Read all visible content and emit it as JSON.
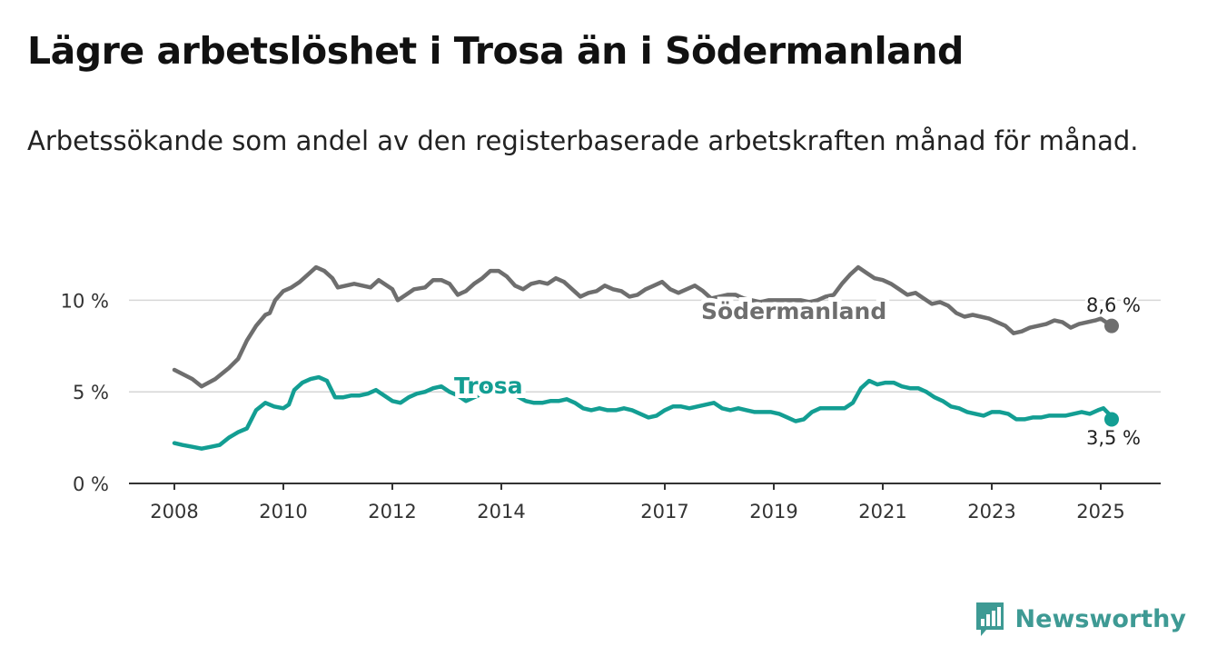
{
  "title": "Lägre arbetslöshet i Trosa än i Södermanland",
  "subtitle": "Arbetssökande som andel av den registerbaserade arbetskraften månad för månad.",
  "brand": "Newsworthy",
  "colors": {
    "sodermanland": "#6e6e6e",
    "trosa": "#139e93",
    "grid": "#d6d6d6",
    "axis": "#333333",
    "brand": "#3e9a94"
  },
  "chart_data": {
    "type": "line",
    "title": "Lägre arbetslöshet i Trosa än i Södermanland",
    "xlabel": "",
    "ylabel": "",
    "xlim": [
      2008,
      2025.2
    ],
    "ylim": [
      0,
      12
    ],
    "y_ticks": [
      0,
      5,
      10
    ],
    "y_tick_labels": [
      "0 %",
      "5 %",
      "10 %"
    ],
    "x_ticks": [
      2008,
      2010,
      2012,
      2014,
      2017,
      2019,
      2021,
      2023,
      2025
    ],
    "x_tick_labels": [
      "2008",
      "2010",
      "2012",
      "2014",
      "2017",
      "2019",
      "2021",
      "2023",
      "2025"
    ],
    "grid": true,
    "legend": "inline labels",
    "series": [
      {
        "name": "Södermanland",
        "end_label": "8,6 %",
        "points": [
          [
            2008,
            6.2
          ],
          [
            2008.2,
            5.9
          ],
          [
            2008.33,
            5.7
          ],
          [
            2008.5,
            5.3
          ],
          [
            2008.75,
            5.7
          ],
          [
            2009,
            6.3
          ],
          [
            2009.17,
            6.8
          ],
          [
            2009.33,
            7.8
          ],
          [
            2009.5,
            8.6
          ],
          [
            2009.67,
            9.2
          ],
          [
            2009.75,
            9.3
          ],
          [
            2009.85,
            10.0
          ],
          [
            2010,
            10.5
          ],
          [
            2010.15,
            10.7
          ],
          [
            2010.3,
            11.0
          ],
          [
            2010.45,
            11.4
          ],
          [
            2010.6,
            11.8
          ],
          [
            2010.75,
            11.6
          ],
          [
            2010.9,
            11.2
          ],
          [
            2011,
            10.7
          ],
          [
            2011.15,
            10.8
          ],
          [
            2011.3,
            10.9
          ],
          [
            2011.45,
            10.8
          ],
          [
            2011.6,
            10.7
          ],
          [
            2011.75,
            11.1
          ],
          [
            2011.9,
            10.8
          ],
          [
            2012,
            10.6
          ],
          [
            2012.1,
            10.0
          ],
          [
            2012.25,
            10.3
          ],
          [
            2012.4,
            10.6
          ],
          [
            2012.6,
            10.7
          ],
          [
            2012.75,
            11.1
          ],
          [
            2012.9,
            11.1
          ],
          [
            2013.05,
            10.9
          ],
          [
            2013.2,
            10.3
          ],
          [
            2013.35,
            10.5
          ],
          [
            2013.5,
            10.9
          ],
          [
            2013.65,
            11.2
          ],
          [
            2013.8,
            11.6
          ],
          [
            2013.95,
            11.6
          ],
          [
            2014.1,
            11.3
          ],
          [
            2014.25,
            10.8
          ],
          [
            2014.4,
            10.6
          ],
          [
            2014.55,
            10.9
          ],
          [
            2014.7,
            11.0
          ],
          [
            2014.85,
            10.9
          ],
          [
            2015,
            11.2
          ],
          [
            2015.15,
            11.0
          ],
          [
            2015.3,
            10.6
          ],
          [
            2015.45,
            10.2
          ],
          [
            2015.6,
            10.4
          ],
          [
            2015.75,
            10.5
          ],
          [
            2015.9,
            10.8
          ],
          [
            2016.05,
            10.6
          ],
          [
            2016.2,
            10.5
          ],
          [
            2016.35,
            10.2
          ],
          [
            2016.5,
            10.3
          ],
          [
            2016.65,
            10.6
          ],
          [
            2016.8,
            10.8
          ],
          [
            2016.95,
            11.0
          ],
          [
            2017.1,
            10.6
          ],
          [
            2017.25,
            10.4
          ],
          [
            2017.4,
            10.6
          ],
          [
            2017.55,
            10.8
          ],
          [
            2017.7,
            10.5
          ],
          [
            2017.85,
            10.1
          ],
          [
            2018,
            10.2
          ],
          [
            2018.15,
            10.3
          ],
          [
            2018.3,
            10.3
          ],
          [
            2018.45,
            10.1
          ],
          [
            2018.6,
            10.0
          ],
          [
            2018.75,
            9.9
          ],
          [
            2018.9,
            10.0
          ],
          [
            2019.05,
            10.0
          ],
          [
            2019.2,
            10.0
          ],
          [
            2019.35,
            10.0
          ],
          [
            2019.5,
            10.0
          ],
          [
            2019.65,
            9.9
          ],
          [
            2019.8,
            10.0
          ],
          [
            2019.95,
            10.2
          ],
          [
            2020.1,
            10.3
          ],
          [
            2020.25,
            10.9
          ],
          [
            2020.4,
            11.4
          ],
          [
            2020.55,
            11.8
          ],
          [
            2020.7,
            11.5
          ],
          [
            2020.85,
            11.2
          ],
          [
            2021,
            11.1
          ],
          [
            2021.15,
            10.9
          ],
          [
            2021.3,
            10.6
          ],
          [
            2021.45,
            10.3
          ],
          [
            2021.6,
            10.4
          ],
          [
            2021.75,
            10.1
          ],
          [
            2021.9,
            9.8
          ],
          [
            2022.05,
            9.9
          ],
          [
            2022.2,
            9.7
          ],
          [
            2022.35,
            9.3
          ],
          [
            2022.5,
            9.1
          ],
          [
            2022.65,
            9.2
          ],
          [
            2022.8,
            9.1
          ],
          [
            2022.95,
            9.0
          ],
          [
            2023.1,
            8.8
          ],
          [
            2023.25,
            8.6
          ],
          [
            2023.4,
            8.2
          ],
          [
            2023.55,
            8.3
          ],
          [
            2023.7,
            8.5
          ],
          [
            2023.85,
            8.6
          ],
          [
            2024,
            8.7
          ],
          [
            2024.15,
            8.9
          ],
          [
            2024.3,
            8.8
          ],
          [
            2024.45,
            8.5
          ],
          [
            2024.6,
            8.7
          ],
          [
            2024.75,
            8.8
          ],
          [
            2024.9,
            8.9
          ],
          [
            2025,
            9.0
          ],
          [
            2025.1,
            8.8
          ],
          [
            2025.2,
            8.6
          ]
        ]
      },
      {
        "name": "Trosa",
        "end_label": "3,5 %",
        "points": [
          [
            2008,
            2.2
          ],
          [
            2008.15,
            2.1
          ],
          [
            2008.33,
            2.0
          ],
          [
            2008.5,
            1.9
          ],
          [
            2008.67,
            2.0
          ],
          [
            2008.83,
            2.1
          ],
          [
            2009,
            2.5
          ],
          [
            2009.17,
            2.8
          ],
          [
            2009.33,
            3.0
          ],
          [
            2009.5,
            4.0
          ],
          [
            2009.67,
            4.4
          ],
          [
            2009.83,
            4.2
          ],
          [
            2010,
            4.1
          ],
          [
            2010.1,
            4.3
          ],
          [
            2010.2,
            5.1
          ],
          [
            2010.35,
            5.5
          ],
          [
            2010.5,
            5.7
          ],
          [
            2010.65,
            5.8
          ],
          [
            2010.8,
            5.6
          ],
          [
            2010.95,
            4.7
          ],
          [
            2011.1,
            4.7
          ],
          [
            2011.25,
            4.8
          ],
          [
            2011.4,
            4.8
          ],
          [
            2011.55,
            4.9
          ],
          [
            2011.7,
            5.1
          ],
          [
            2011.85,
            4.8
          ],
          [
            2012,
            4.5
          ],
          [
            2012.15,
            4.4
          ],
          [
            2012.3,
            4.7
          ],
          [
            2012.45,
            4.9
          ],
          [
            2012.6,
            5.0
          ],
          [
            2012.75,
            5.2
          ],
          [
            2012.9,
            5.3
          ],
          [
            2013.05,
            5.0
          ],
          [
            2013.2,
            4.8
          ],
          [
            2013.35,
            4.5
          ],
          [
            2013.5,
            4.7
          ],
          [
            2013.65,
            4.9
          ],
          [
            2013.8,
            5.4
          ],
          [
            2013.95,
            5.6
          ],
          [
            2014.2,
            4.9
          ],
          [
            2014.45,
            4.5
          ],
          [
            2014.6,
            4.4
          ],
          [
            2014.75,
            4.4
          ],
          [
            2014.9,
            4.5
          ],
          [
            2015.05,
            4.5
          ],
          [
            2015.2,
            4.6
          ],
          [
            2015.35,
            4.4
          ],
          [
            2015.5,
            4.1
          ],
          [
            2015.65,
            4.0
          ],
          [
            2015.8,
            4.1
          ],
          [
            2015.95,
            4.0
          ],
          [
            2016.1,
            4.0
          ],
          [
            2016.25,
            4.1
          ],
          [
            2016.4,
            4.0
          ],
          [
            2016.55,
            3.8
          ],
          [
            2016.7,
            3.6
          ],
          [
            2016.85,
            3.7
          ],
          [
            2017,
            4.0
          ],
          [
            2017.15,
            4.2
          ],
          [
            2017.3,
            4.2
          ],
          [
            2017.45,
            4.1
          ],
          [
            2017.6,
            4.2
          ],
          [
            2017.75,
            4.3
          ],
          [
            2017.9,
            4.4
          ],
          [
            2018.05,
            4.1
          ],
          [
            2018.2,
            4.0
          ],
          [
            2018.35,
            4.1
          ],
          [
            2018.5,
            4.0
          ],
          [
            2018.65,
            3.9
          ],
          [
            2018.8,
            3.9
          ],
          [
            2018.95,
            3.9
          ],
          [
            2019.1,
            3.8
          ],
          [
            2019.25,
            3.6
          ],
          [
            2019.4,
            3.4
          ],
          [
            2019.55,
            3.5
          ],
          [
            2019.7,
            3.9
          ],
          [
            2019.85,
            4.1
          ],
          [
            2020,
            4.1
          ],
          [
            2020.15,
            4.1
          ],
          [
            2020.3,
            4.1
          ],
          [
            2020.45,
            4.4
          ],
          [
            2020.6,
            5.2
          ],
          [
            2020.75,
            5.6
          ],
          [
            2020.9,
            5.4
          ],
          [
            2021.05,
            5.5
          ],
          [
            2021.2,
            5.5
          ],
          [
            2021.35,
            5.3
          ],
          [
            2021.5,
            5.2
          ],
          [
            2021.65,
            5.2
          ],
          [
            2021.8,
            5.0
          ],
          [
            2021.95,
            4.7
          ],
          [
            2022.1,
            4.5
          ],
          [
            2022.25,
            4.2
          ],
          [
            2022.4,
            4.1
          ],
          [
            2022.55,
            3.9
          ],
          [
            2022.7,
            3.8
          ],
          [
            2022.85,
            3.7
          ],
          [
            2023,
            3.9
          ],
          [
            2023.15,
            3.9
          ],
          [
            2023.3,
            3.8
          ],
          [
            2023.45,
            3.5
          ],
          [
            2023.6,
            3.5
          ],
          [
            2023.75,
            3.6
          ],
          [
            2023.9,
            3.6
          ],
          [
            2024.05,
            3.7
          ],
          [
            2024.2,
            3.7
          ],
          [
            2024.35,
            3.7
          ],
          [
            2024.5,
            3.8
          ],
          [
            2024.65,
            3.9
          ],
          [
            2024.8,
            3.8
          ],
          [
            2024.95,
            4.0
          ],
          [
            2025.05,
            4.1
          ],
          [
            2025.15,
            3.8
          ],
          [
            2025.2,
            3.5
          ]
        ]
      }
    ]
  }
}
